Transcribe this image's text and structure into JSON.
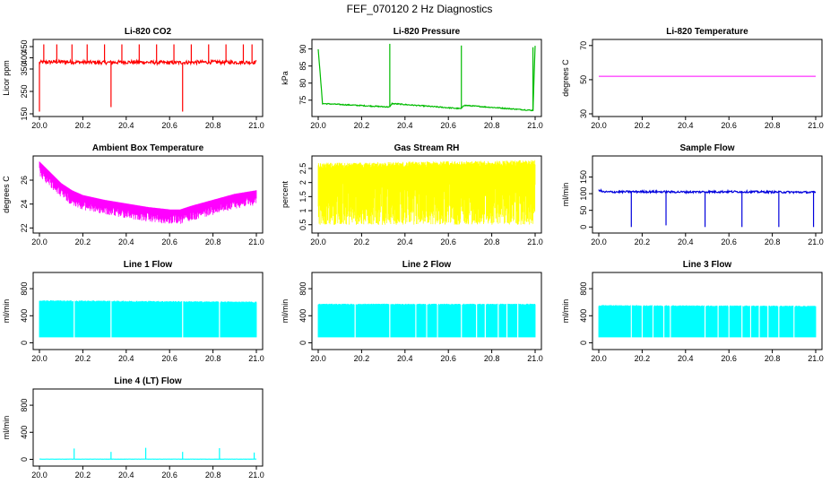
{
  "figure": {
    "title": "FEF_070120  2 Hz Diagnostics"
  },
  "chart_data": [
    {
      "type": "line",
      "title": "Li-820 CO2",
      "ylabel": "Licor ppm",
      "color": "#ff0000",
      "xlim": [
        0.0,
        1.0
      ],
      "ylim": [
        150,
        470
      ],
      "xticks": [
        0.0,
        0.2,
        0.4,
        0.6,
        0.8,
        1.0
      ],
      "xtick_labels": [
        "20.0",
        "20.2",
        "20.4",
        "20.6",
        "20.8",
        "21.0"
      ],
      "yticks": [
        150,
        250,
        350,
        400,
        450
      ],
      "ytick_labels": [
        "150",
        "250",
        "350",
        "400",
        "450"
      ],
      "style": "noisy",
      "x": [
        0.0,
        0.1,
        0.2,
        0.3,
        0.4,
        0.5,
        0.6,
        0.7,
        0.8,
        0.9,
        1.0
      ],
      "y": [
        380,
        382,
        380,
        379,
        381,
        380,
        378,
        380,
        381,
        380,
        380
      ],
      "noise": 8,
      "spikes": [
        {
          "x": 0.0,
          "y": 160
        },
        {
          "x": 0.02,
          "y": 460
        },
        {
          "x": 0.08,
          "y": 460
        },
        {
          "x": 0.15,
          "y": 460
        },
        {
          "x": 0.22,
          "y": 460
        },
        {
          "x": 0.3,
          "y": 460
        },
        {
          "x": 0.33,
          "y": 180
        },
        {
          "x": 0.38,
          "y": 460
        },
        {
          "x": 0.46,
          "y": 460
        },
        {
          "x": 0.54,
          "y": 460
        },
        {
          "x": 0.62,
          "y": 460
        },
        {
          "x": 0.66,
          "y": 160
        },
        {
          "x": 0.7,
          "y": 460
        },
        {
          "x": 0.78,
          "y": 460
        },
        {
          "x": 0.86,
          "y": 460
        },
        {
          "x": 0.94,
          "y": 460
        },
        {
          "x": 0.98,
          "y": 460
        }
      ]
    },
    {
      "type": "line",
      "title": "Li-820 Pressure",
      "ylabel": "kPa",
      "color": "#00bb00",
      "xlim": [
        0.0,
        1.0
      ],
      "ylim": [
        71,
        92
      ],
      "xticks": [
        0.0,
        0.2,
        0.4,
        0.6,
        0.8,
        1.0
      ],
      "xtick_labels": [
        "20.0",
        "20.2",
        "20.4",
        "20.6",
        "20.8",
        "21.0"
      ],
      "yticks": [
        75,
        80,
        85,
        90
      ],
      "ytick_labels": [
        "75",
        "80",
        "85",
        "90"
      ],
      "style": "noisy",
      "x": [
        0.0,
        0.02,
        0.33,
        0.34,
        0.66,
        0.67,
        0.99,
        1.0
      ],
      "y": [
        90,
        74,
        73,
        74,
        72.5,
        73.5,
        72,
        91
      ],
      "noise": 0.15,
      "spikes": [
        {
          "x": 0.33,
          "y": 91.5
        },
        {
          "x": 0.66,
          "y": 91
        },
        {
          "x": 0.99,
          "y": 90.5
        }
      ]
    },
    {
      "type": "line",
      "title": "Li-820 Temperature",
      "ylabel": "degrees C",
      "color": "#ff00ff",
      "xlim": [
        0.0,
        1.0
      ],
      "ylim": [
        30,
        72
      ],
      "xticks": [
        0.0,
        0.2,
        0.4,
        0.6,
        0.8,
        1.0
      ],
      "xtick_labels": [
        "20.0",
        "20.2",
        "20.4",
        "20.6",
        "20.8",
        "21.0"
      ],
      "yticks": [
        30,
        50,
        70
      ],
      "ytick_labels": [
        "30",
        "50",
        "70"
      ],
      "style": "line",
      "x": [
        0.0,
        1.0
      ],
      "y": [
        52,
        52
      ],
      "noise": 0,
      "spikes": []
    },
    {
      "type": "line",
      "title": "Ambient Box Temperature",
      "ylabel": "degrees C",
      "color": "#ff00ff",
      "xlim": [
        0.0,
        1.0
      ],
      "ylim": [
        21.8,
        27.8
      ],
      "xticks": [
        0.0,
        0.2,
        0.4,
        0.6,
        0.8,
        1.0
      ],
      "xtick_labels": [
        "20.0",
        "20.2",
        "20.4",
        "20.6",
        "20.8",
        "21.0"
      ],
      "yticks": [
        22,
        24,
        26
      ],
      "ytick_labels": [
        "22",
        "24",
        "26"
      ],
      "style": "band",
      "x": [
        0.0,
        0.05,
        0.1,
        0.15,
        0.2,
        0.3,
        0.4,
        0.5,
        0.6,
        0.65,
        0.7,
        0.8,
        0.9,
        1.0
      ],
      "y": [
        27.4,
        26.5,
        25.6,
        25.0,
        24.6,
        24.2,
        23.9,
        23.6,
        23.4,
        23.4,
        23.7,
        24.2,
        24.7,
        25.0
      ],
      "noise": 1.1,
      "spikes": []
    },
    {
      "type": "line",
      "title": "Gas Stream RH",
      "ylabel": "percent",
      "color": "#ffff00",
      "xlim": [
        0.0,
        1.0
      ],
      "ylim": [
        0.3,
        2.85
      ],
      "xticks": [
        0.0,
        0.2,
        0.4,
        0.6,
        0.8,
        1.0
      ],
      "xtick_labels": [
        "20.0",
        "20.2",
        "20.4",
        "20.6",
        "20.8",
        "21.0"
      ],
      "yticks": [
        0.5,
        1.0,
        1.5,
        2.0,
        2.5
      ],
      "ytick_labels": [
        "0.5",
        "1",
        "1.5",
        "2",
        "2.5"
      ],
      "style": "rhband",
      "x": [
        0.0,
        1.0
      ],
      "y": [
        2.6,
        2.7
      ],
      "noise": 2.0,
      "spikes": []
    },
    {
      "type": "line",
      "title": "Sample Flow",
      "ylabel": "ml/min",
      "color": "#0000dd",
      "xlim": [
        0.0,
        1.0
      ],
      "ylim": [
        -10,
        205
      ],
      "xticks": [
        0.0,
        0.2,
        0.4,
        0.6,
        0.8,
        1.0
      ],
      "xtick_labels": [
        "20.0",
        "20.2",
        "20.4",
        "20.6",
        "20.8",
        "21.0"
      ],
      "yticks": [
        0,
        50,
        100,
        150
      ],
      "ytick_labels": [
        "0",
        "50",
        "100",
        "150"
      ],
      "style": "noisy",
      "x": [
        0.0,
        0.02,
        0.2,
        0.4,
        0.6,
        0.8,
        1.0
      ],
      "y": [
        112,
        105,
        106,
        105,
        106,
        105,
        104
      ],
      "noise": 3,
      "spikes": [
        {
          "x": 0.15,
          "y": 0
        },
        {
          "x": 0.31,
          "y": 5
        },
        {
          "x": 0.49,
          "y": 0
        },
        {
          "x": 0.66,
          "y": 0
        },
        {
          "x": 0.83,
          "y": 0
        },
        {
          "x": 0.99,
          "y": 0
        }
      ]
    },
    {
      "type": "line",
      "title": "Line 1 Flow",
      "ylabel": "ml/min",
      "color": "#00ffff",
      "xlim": [
        0.0,
        1.0
      ],
      "ylim": [
        -60,
        1000
      ],
      "xticks": [
        0.0,
        0.2,
        0.4,
        0.6,
        0.8,
        1.0
      ],
      "xtick_labels": [
        "20.0",
        "20.2",
        "20.4",
        "20.6",
        "20.8",
        "21.0"
      ],
      "yticks": [
        0,
        400,
        800
      ],
      "ytick_labels": [
        "0",
        "400",
        "800"
      ],
      "style": "block",
      "x": [
        0.0,
        1.0
      ],
      "y": [
        620,
        600
      ],
      "noise": 10,
      "low": 80,
      "gaps": [
        0.16,
        0.33,
        0.66,
        0.83
      ],
      "spikes": []
    },
    {
      "type": "line",
      "title": "Line 2 Flow",
      "ylabel": "ml/min",
      "color": "#00ffff",
      "xlim": [
        0.0,
        1.0
      ],
      "ylim": [
        -60,
        1000
      ],
      "xticks": [
        0.0,
        0.2,
        0.4,
        0.6,
        0.8,
        1.0
      ],
      "xtick_labels": [
        "20.0",
        "20.2",
        "20.4",
        "20.6",
        "20.8",
        "21.0"
      ],
      "yticks": [
        0,
        400,
        800
      ],
      "ytick_labels": [
        "0",
        "400",
        "800"
      ],
      "style": "block",
      "x": [
        0.0,
        1.0
      ],
      "y": [
        570,
        570
      ],
      "noise": 8,
      "low": 80,
      "gaps": [
        0.17,
        0.33,
        0.45,
        0.5,
        0.55,
        0.66,
        0.73,
        0.77,
        0.83,
        0.87,
        0.92
      ],
      "spikes": []
    },
    {
      "type": "line",
      "title": "Line 3 Flow",
      "ylabel": "ml/min",
      "color": "#00ffff",
      "xlim": [
        0.0,
        1.0
      ],
      "ylim": [
        -60,
        1000
      ],
      "xticks": [
        0.0,
        0.2,
        0.4,
        0.6,
        0.8,
        1.0
      ],
      "xtick_labels": [
        "20.0",
        "20.2",
        "20.4",
        "20.6",
        "20.8",
        "21.0"
      ],
      "yticks": [
        0,
        400,
        800
      ],
      "ytick_labels": [
        "0",
        "400",
        "800"
      ],
      "style": "block",
      "x": [
        0.0,
        1.0
      ],
      "y": [
        550,
        540
      ],
      "noise": 8,
      "low": 80,
      "gaps": [
        0.15,
        0.2,
        0.25,
        0.3,
        0.33,
        0.49,
        0.55,
        0.6,
        0.66,
        0.7,
        0.74,
        0.78,
        0.83,
        0.9
      ],
      "spikes": []
    },
    {
      "type": "line",
      "title": "Line 4 (LT) Flow",
      "ylabel": "ml/min",
      "color": "#00ffff",
      "xlim": [
        0.0,
        1.0
      ],
      "ylim": [
        -60,
        1000
      ],
      "xticks": [
        0.0,
        0.2,
        0.4,
        0.6,
        0.8,
        1.0
      ],
      "xtick_labels": [
        "20.0",
        "20.2",
        "20.4",
        "20.6",
        "20.8",
        "21.0"
      ],
      "yticks": [
        0,
        400,
        800
      ],
      "ytick_labels": [
        "0",
        "400",
        "800"
      ],
      "style": "noisy",
      "x": [
        0.0,
        1.0
      ],
      "y": [
        3,
        3
      ],
      "noise": 1,
      "spikes": [
        {
          "x": 0.16,
          "y": 160
        },
        {
          "x": 0.33,
          "y": 110
        },
        {
          "x": 0.49,
          "y": 170
        },
        {
          "x": 0.66,
          "y": 110
        },
        {
          "x": 0.83,
          "y": 165
        },
        {
          "x": 0.99,
          "y": 100
        }
      ]
    }
  ]
}
